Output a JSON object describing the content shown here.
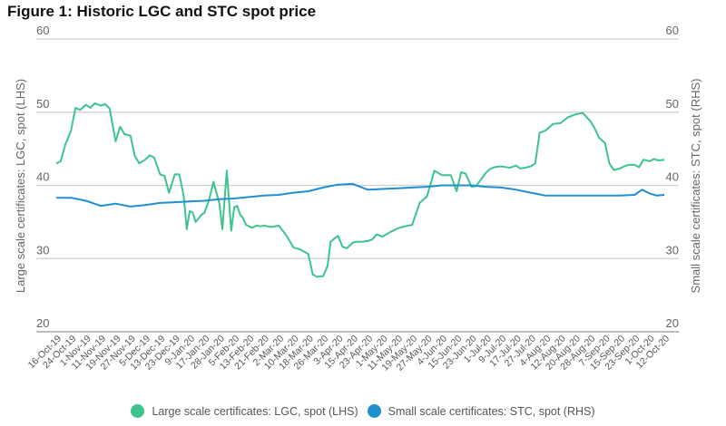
{
  "chart_data": {
    "type": "line",
    "title": "Figure 1: Historic LGC and STC spot price",
    "ylabel_left": "Large scale certificates: LGC, spot (LHS)",
    "ylabel_right": "Small scale certificates: STC, spot (RHS)",
    "ylim_left": [
      20,
      60
    ],
    "ylim_right": [
      20,
      60
    ],
    "yticks_left": [
      "60",
      "50",
      "40",
      "30",
      "20"
    ],
    "yticks_right": [
      "60",
      "50",
      "40",
      "30",
      "20"
    ],
    "grid": true,
    "legend_position": "bottom",
    "x_tick_labels": [
      "16-Oct-19",
      "24-Oct-19",
      "1-Nov-19",
      "11-Nov-19",
      "19-Nov-19",
      "27-Nov-19",
      "5-Dec-19",
      "13-Dec-19",
      "23-Dec-19",
      "9-Jan-20",
      "17-Jan-20",
      "28-Jan-20",
      "5-Feb-20",
      "13-Feb-20",
      "21-Feb-20",
      "2-Mar-20",
      "10-Mar-20",
      "18-Mar-20",
      "26-Mar-20",
      "3-Apr-20",
      "15-Apr-20",
      "23-Apr-20",
      "1-May-20",
      "11-May-20",
      "19-May-20",
      "27-May-20",
      "4-Jun-20",
      "15-Jun-20",
      "23-Jun-20",
      "1-Jul-20",
      "9-Jul-20",
      "17-Jul-20",
      "27-Jul-20",
      "4-Aug-20",
      "12-Aug-20",
      "20-Aug-20",
      "28-Aug-20",
      "7-Sep-20",
      "15-Sep-20",
      "23-Sep-20",
      "1-Oct-20",
      "12-Oct-20"
    ],
    "series": [
      {
        "name": "Large scale certificates: LGC, spot (LHS)",
        "axis": "left",
        "color": "#3cc48c",
        "x": [
          0,
          0.3,
          0.6,
          1,
          1.3,
          1.6,
          2,
          2.3,
          2.6,
          3,
          3.3,
          3.6,
          4,
          4.3,
          4.6,
          5,
          5.3,
          5.6,
          6,
          6.3,
          6.6,
          7,
          7.3,
          7.6,
          8,
          8.3,
          8.6,
          8.8,
          9,
          9.2,
          9.4,
          9.6,
          9.8,
          10,
          10.3,
          10.6,
          11,
          11.2,
          11.5,
          11.8,
          12,
          12.2,
          12.4,
          12.6,
          12.8,
          13,
          13.2,
          13.5,
          13.8,
          14,
          14.5,
          15,
          15.5,
          16,
          16.5,
          17,
          17.3,
          17.6,
          18,
          18.3,
          18.5,
          18.8,
          19,
          19.3,
          19.6,
          20,
          20.3,
          20.6,
          21,
          21.3,
          21.6,
          22,
          22.5,
          23,
          23.5,
          24,
          24.5,
          25,
          25.5,
          26,
          26.3,
          26.6,
          27,
          27.3,
          27.6,
          28,
          28.3,
          28.6,
          29,
          29.3,
          29.6,
          30,
          30.3,
          30.6,
          31,
          31.3,
          31.6,
          32,
          32.3,
          32.6,
          33,
          33.5,
          34,
          34.5,
          35,
          35.5,
          36,
          36.3,
          36.6,
          37,
          37.3,
          37.6,
          38,
          38.3,
          38.6,
          39,
          39.3,
          39.6,
          40,
          40.3,
          40.6,
          41
        ],
        "values": [
          43,
          43.3,
          45.5,
          47.5,
          50.6,
          50.3,
          51,
          50.6,
          51.2,
          50.9,
          51.1,
          50.5,
          46,
          48,
          47,
          46.8,
          44,
          43,
          43.5,
          44.1,
          43.8,
          41.5,
          41.3,
          39,
          41.5,
          41.5,
          38.5,
          34,
          36.5,
          36.3,
          35,
          35.5,
          36,
          36.3,
          38,
          40.5,
          37.5,
          34,
          42,
          33.8,
          37,
          37.2,
          36,
          35.5,
          34.6,
          34.4,
          34.2,
          34.5,
          34.4,
          34.5,
          34.3,
          34.5,
          33.2,
          31.5,
          31.2,
          30.6,
          27.8,
          27.5,
          27.6,
          29,
          32.3,
          32.8,
          33.1,
          31.6,
          31.4,
          32.2,
          32.3,
          32.3,
          32.4,
          32.6,
          33.3,
          33,
          33.6,
          34.1,
          34.4,
          34.6,
          37.6,
          38.5,
          42,
          41.4,
          41.4,
          41.4,
          39.2,
          41.8,
          41.6,
          39.8,
          39.9,
          40.7,
          41.8,
          42.3,
          42.5,
          42.6,
          42.5,
          42.4,
          42.7,
          42.3,
          42.4,
          42.6,
          43,
          47.2,
          47.5,
          48.4,
          48.5,
          49.3,
          49.7,
          49.9,
          48.8,
          47.8,
          46.5,
          45.8,
          43,
          42.1,
          42.3,
          42.6,
          42.8,
          42.8,
          42.5,
          43.5,
          43.3,
          43.6,
          43.4,
          43.5
        ]
      },
      {
        "name": "Small scale certificates: STC, spot (RHS)",
        "axis": "right",
        "color": "#1f90cf",
        "x": [
          0,
          1,
          2,
          3,
          4,
          5,
          6,
          7,
          8,
          9,
          10,
          11,
          12,
          13,
          14,
          15,
          16,
          17,
          18,
          19,
          20,
          21,
          22,
          23,
          24,
          25,
          26,
          27,
          28,
          29,
          30,
          31,
          32,
          33,
          34,
          35,
          36,
          37,
          38,
          39,
          39.5,
          40,
          40.5,
          41
        ],
        "values": [
          38.3,
          38.3,
          37.9,
          37.2,
          37.5,
          37.1,
          37.3,
          37.6,
          37.7,
          37.8,
          37.9,
          38.1,
          38.2,
          38.4,
          38.6,
          38.7,
          39,
          39.2,
          39.7,
          40.1,
          40.2,
          39.4,
          39.5,
          39.6,
          39.7,
          39.8,
          40,
          40,
          40,
          39.8,
          39.7,
          39.4,
          39,
          38.6,
          38.6,
          38.6,
          38.6,
          38.6,
          38.6,
          38.7,
          39.4,
          38.9,
          38.6,
          38.7
        ]
      }
    ]
  },
  "legend": {
    "items": [
      {
        "label": "Large scale certificates: LGC, spot (LHS)",
        "color": "#3cc48c"
      },
      {
        "label": "Small scale certificates: STC, spot (RHS)",
        "color": "#1f90cf"
      }
    ]
  }
}
